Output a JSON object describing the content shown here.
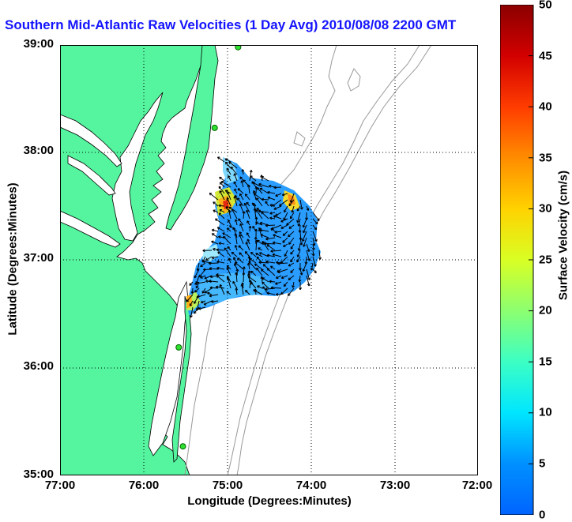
{
  "title": "Southern Mid-Atlantic Raw Velocities (1 Day Avg) 2010/08/08 2200 GMT",
  "map": {
    "xlabel": "Longitude (Degrees:Minutes)",
    "ylabel": "Latitude (Degrees:Minutes)",
    "x_ticks": [
      {
        "lon": -77,
        "label": "77:00"
      },
      {
        "lon": -76,
        "label": "76:00"
      },
      {
        "lon": -75,
        "label": "75:00"
      },
      {
        "lon": -74,
        "label": "74:00"
      },
      {
        "lon": -73,
        "label": "73:00"
      },
      {
        "lon": -72,
        "label": "72:00"
      }
    ],
    "y_ticks": [
      {
        "lat": 39,
        "label": "39:00"
      },
      {
        "lat": 38,
        "label": "38:00"
      },
      {
        "lat": 37,
        "label": "37:00"
      },
      {
        "lat": 36,
        "label": "36:00"
      },
      {
        "lat": 35,
        "label": "35:00"
      }
    ],
    "lon_range": [
      -77,
      -72
    ],
    "lat_range": [
      35,
      39
    ],
    "grid": "dotted",
    "land_color": "#55f59f",
    "water_color": "#ffffff",
    "bathymetry_color": "#999999"
  },
  "colorbar": {
    "label": "Surface Velocity (cm/s)",
    "range": [
      0,
      50
    ],
    "ticks": [
      "0",
      "5",
      "10",
      "15",
      "20",
      "25",
      "30",
      "35",
      "40",
      "45",
      "50"
    ],
    "colormap": "jet",
    "units": "cm/s"
  },
  "stations": [
    {
      "lon": -74.87,
      "lat": 38.98
    },
    {
      "lon": -75.15,
      "lat": 38.23
    },
    {
      "lon": -75.58,
      "lat": 36.19
    },
    {
      "lon": -75.53,
      "lat": 35.27
    }
  ],
  "velocity_field": {
    "lon_range": [
      -75.2,
      -73.7
    ],
    "lat_range": [
      36.55,
      37.8
    ],
    "typical_speed_cm_s": [
      5,
      15
    ],
    "max_speed_cm_s": 33,
    "hot_spots": [
      {
        "lon": -75.0,
        "lat": 37.48,
        "speed_cm_s": 33
      },
      {
        "lon": -74.2,
        "lat": 37.6,
        "speed_cm_s": 30
      }
    ]
  }
}
